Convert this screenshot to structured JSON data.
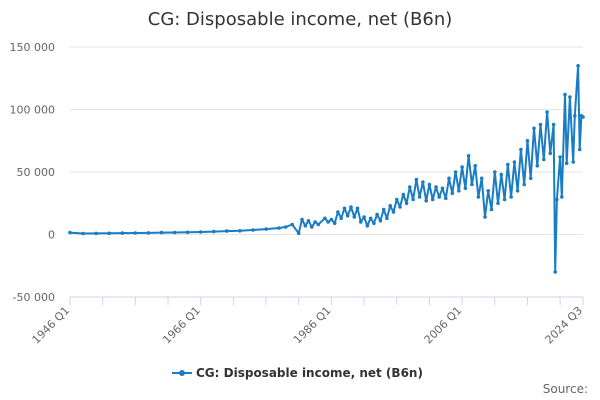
{
  "chart_data": {
    "type": "line",
    "title": "CG: Disposable income, net (B6n)",
    "xlabel": "",
    "ylabel": "",
    "ylim": [
      -50000,
      150000
    ],
    "yticks": [
      -50000,
      0,
      50000,
      100000,
      150000
    ],
    "ytick_labels": [
      "-50 000",
      "0",
      "50 000",
      "100 000",
      "150 000"
    ],
    "x_range": [
      "1946 Q1",
      "2024 Q3"
    ],
    "xtick_labels": [
      "1946 Q1",
      "1966 Q1",
      "1986 Q1",
      "2006 Q1",
      "2024 Q3"
    ],
    "xtick_positions": [
      "1946 Q1",
      "1966 Q1",
      "1986 Q1",
      "2006 Q1",
      "2024 Q3"
    ],
    "minor_x_ticks": [
      "1946 Q1",
      "1951 Q1",
      "1956 Q1",
      "1961 Q1",
      "1966 Q1",
      "1971 Q1",
      "1976 Q1",
      "1981 Q1",
      "1986 Q1",
      "1991 Q1",
      "1996 Q1",
      "2001 Q1",
      "2006 Q1",
      "2011 Q1",
      "2016 Q1",
      "2021 Q1",
      "2024 Q3"
    ],
    "grid": true,
    "legend_position": "bottom-center",
    "series": [
      {
        "name": "CG: Disposable income, net (B6n)",
        "color": "#1a7cc2",
        "points": [
          [
            "1946 Q1",
            1500
          ],
          [
            "1948 Q1",
            800
          ],
          [
            "1950 Q1",
            900
          ],
          [
            "1952 Q1",
            1000
          ],
          [
            "1954 Q1",
            1100
          ],
          [
            "1956 Q1",
            1200
          ],
          [
            "1958 Q1",
            1300
          ],
          [
            "1960 Q1",
            1500
          ],
          [
            "1962 Q1",
            1600
          ],
          [
            "1964 Q1",
            1800
          ],
          [
            "1966 Q1",
            2000
          ],
          [
            "1968 Q1",
            2300
          ],
          [
            "1970 Q1",
            2700
          ],
          [
            "1972 Q1",
            3000
          ],
          [
            "1974 Q1",
            3600
          ],
          [
            "1976 Q1",
            4300
          ],
          [
            "1978 Q1",
            5200
          ],
          [
            "1979 Q1",
            6000
          ],
          [
            "1980 Q1",
            8000
          ],
          [
            "1981 Q1",
            1000
          ],
          [
            "1981 Q3",
            12000
          ],
          [
            "1982 Q1",
            7000
          ],
          [
            "1982 Q3",
            11000
          ],
          [
            "1983 Q1",
            6000
          ],
          [
            "1983 Q3",
            10000
          ],
          [
            "1984 Q1",
            8000
          ],
          [
            "1985 Q1",
            13000
          ],
          [
            "1985 Q3",
            10000
          ],
          [
            "1986 Q1",
            12000
          ],
          [
            "1986 Q3",
            9000
          ],
          [
            "1987 Q1",
            18000
          ],
          [
            "1987 Q3",
            13000
          ],
          [
            "1988 Q1",
            21000
          ],
          [
            "1988 Q3",
            15000
          ],
          [
            "1989 Q1",
            22000
          ],
          [
            "1989 Q3",
            14000
          ],
          [
            "1990 Q1",
            21000
          ],
          [
            "1990 Q3",
            10000
          ],
          [
            "1991 Q1",
            14000
          ],
          [
            "1991 Q3",
            7000
          ],
          [
            "1992 Q1",
            13000
          ],
          [
            "1992 Q3",
            9000
          ],
          [
            "1993 Q1",
            16000
          ],
          [
            "1993 Q3",
            11000
          ],
          [
            "1994 Q1",
            20000
          ],
          [
            "1994 Q3",
            13000
          ],
          [
            "1995 Q1",
            23000
          ],
          [
            "1995 Q3",
            18000
          ],
          [
            "1996 Q1",
            28000
          ],
          [
            "1996 Q3",
            22000
          ],
          [
            "1997 Q1",
            32000
          ],
          [
            "1997 Q3",
            25000
          ],
          [
            "1998 Q1",
            38000
          ],
          [
            "1998 Q3",
            28000
          ],
          [
            "1999 Q1",
            44000
          ],
          [
            "1999 Q3",
            30000
          ],
          [
            "2000 Q1",
            42000
          ],
          [
            "2000 Q3",
            27000
          ],
          [
            "2001 Q1",
            40000
          ],
          [
            "2001 Q3",
            28000
          ],
          [
            "2002 Q1",
            38000
          ],
          [
            "2002 Q3",
            30000
          ],
          [
            "2003 Q1",
            37000
          ],
          [
            "2003 Q3",
            29000
          ],
          [
            "2004 Q1",
            45000
          ],
          [
            "2004 Q3",
            33000
          ],
          [
            "2005 Q1",
            50000
          ],
          [
            "2005 Q3",
            35000
          ],
          [
            "2006 Q1",
            54000
          ],
          [
            "2006 Q3",
            37000
          ],
          [
            "2007 Q1",
            63000
          ],
          [
            "2007 Q3",
            40000
          ],
          [
            "2008 Q1",
            55000
          ],
          [
            "2008 Q3",
            30000
          ],
          [
            "2009 Q1",
            45000
          ],
          [
            "2009 Q3",
            14000
          ],
          [
            "2010 Q1",
            35000
          ],
          [
            "2010 Q3",
            20000
          ],
          [
            "2011 Q1",
            50000
          ],
          [
            "2011 Q3",
            25000
          ],
          [
            "2012 Q1",
            48000
          ],
          [
            "2012 Q3",
            28000
          ],
          [
            "2013 Q1",
            56000
          ],
          [
            "2013 Q3",
            30000
          ],
          [
            "2014 Q1",
            58000
          ],
          [
            "2014 Q3",
            35000
          ],
          [
            "2015 Q1",
            68000
          ],
          [
            "2015 Q3",
            40000
          ],
          [
            "2016 Q1",
            75000
          ],
          [
            "2016 Q3",
            45000
          ],
          [
            "2017 Q1",
            85000
          ],
          [
            "2017 Q3",
            55000
          ],
          [
            "2018 Q1",
            88000
          ],
          [
            "2018 Q3",
            60000
          ],
          [
            "2019 Q1",
            98000
          ],
          [
            "2019 Q3",
            65000
          ],
          [
            "2020 Q1",
            88000
          ],
          [
            "2020 Q2",
            -30000
          ],
          [
            "2020 Q3",
            28000
          ],
          [
            "2021 Q1",
            62000
          ],
          [
            "2021 Q2",
            30000
          ],
          [
            "2021 Q4",
            112000
          ],
          [
            "2022 Q1",
            57000
          ],
          [
            "2022 Q3",
            110000
          ],
          [
            "2023 Q1",
            58000
          ],
          [
            "2023 Q2",
            95000
          ],
          [
            "2023 Q4",
            135000
          ],
          [
            "2024 Q1",
            68000
          ],
          [
            "2024 Q2",
            95000
          ],
          [
            "2024 Q3",
            94000
          ]
        ]
      }
    ],
    "source_label": "Source:"
  }
}
